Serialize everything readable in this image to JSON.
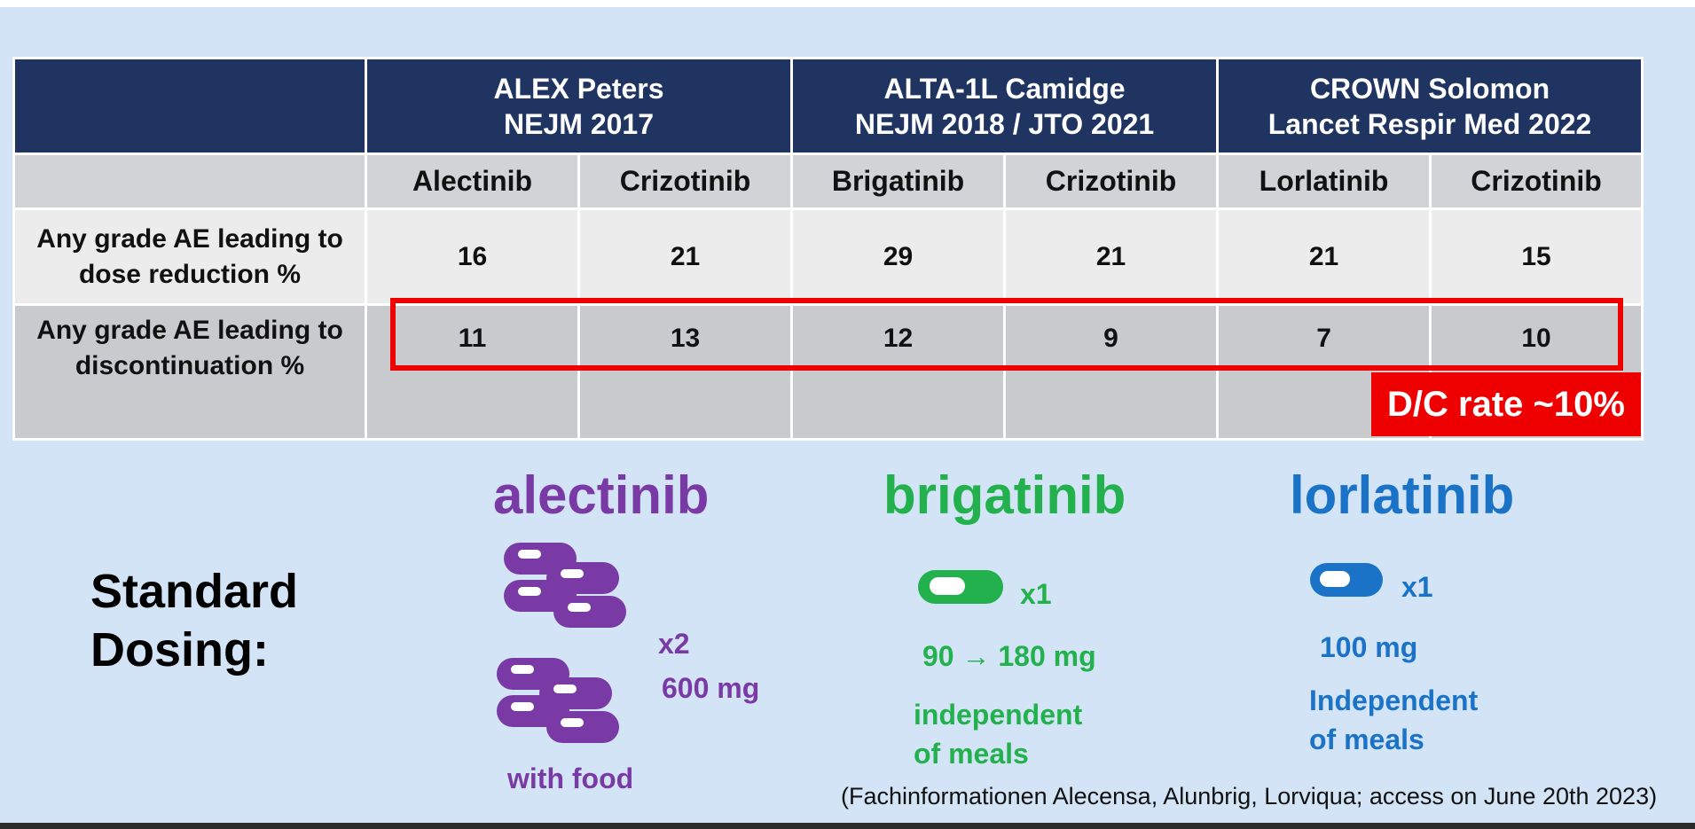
{
  "table": {
    "trials": [
      {
        "line1": "ALEX Peters",
        "line2": "NEJM 2017"
      },
      {
        "line1": "ALTA-1L Camidge",
        "line2": "NEJM 2018 / JTO 2021"
      },
      {
        "line1": "CROWN Solomon",
        "line2": "Lancet Respir Med 2022"
      }
    ],
    "arms": [
      "Alectinib",
      "Crizotinib",
      "Brigatinib",
      "Crizotinib",
      "Lorlatinib",
      "Crizotinib"
    ],
    "rows": [
      {
        "label_line1": "Any grade AE leading to",
        "label_line2": "dose reduction %",
        "values": [
          "16",
          "21",
          "29",
          "21",
          "21",
          "15"
        ]
      },
      {
        "label_line1": "Any grade AE leading to",
        "label_line2": "discontinuation %",
        "values": [
          "11",
          "13",
          "12",
          "9",
          "7",
          "10"
        ]
      }
    ]
  },
  "highlight": {
    "badge": "D/C rate ~10%",
    "color": "#ee0000"
  },
  "dosing": {
    "label_line1": "Standard",
    "label_line2": "Dosing:",
    "alectinib": {
      "name": "alectinib",
      "count": "x2",
      "dose": "600 mg",
      "note": "with food",
      "color": "#7a3aa6",
      "icon": "capsule-icon"
    },
    "brigatinib": {
      "name": "brigatinib",
      "count": "x1",
      "dose": "90 → 180 mg",
      "note_line1": "independent",
      "note_line2": "of meals",
      "color": "#22b14c",
      "icon": "tablet-icon"
    },
    "lorlatinib": {
      "name": "lorlatinib",
      "count": "x1",
      "dose": "100 mg",
      "note_line1": "Independent",
      "note_line2": "of meals",
      "color": "#1b73c8",
      "icon": "tablet-icon"
    }
  },
  "source": "(Fachinformationen Alecensa, Alunbrig, Lorviqua; access on June 20th 2023)"
}
